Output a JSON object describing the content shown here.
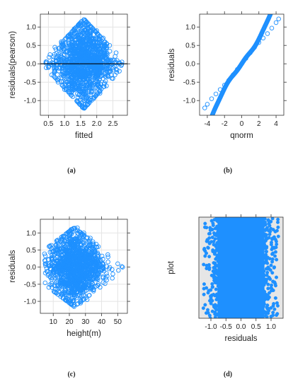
{
  "point_color": "#1E90FF",
  "chart_data": [
    {
      "type": "scatter",
      "caption": "(a)",
      "xlabel": "fitted",
      "ylabel": "residuals(pearson)",
      "xlim": [
        0.25,
        2.95
      ],
      "ylim": [
        -1.4,
        1.35
      ],
      "xticks": [
        0.5,
        1.0,
        1.5,
        2.0,
        2.5
      ],
      "xtick_labels": [
        "0.5",
        "1.0",
        "1.5",
        "2.0",
        "2.5"
      ],
      "yticks": [
        -1.0,
        -0.5,
        0.0,
        0.5,
        1.0
      ],
      "ytick_labels": [
        "-1.0",
        "-0.5",
        "0.0",
        "0.5",
        "1.0"
      ],
      "grid": true,
      "reference_line_y": 0,
      "marker": "open-circle",
      "series": [
        {
          "x": [
            0.45,
            0.5,
            0.55,
            0.6,
            0.7,
            0.8,
            0.9,
            1.0,
            1.1,
            1.2,
            1.3,
            1.4,
            1.5,
            1.55,
            1.6,
            1.7,
            1.8,
            1.9,
            2.0,
            2.1,
            2.2,
            2.3,
            2.4,
            2.5,
            2.6,
            2.7,
            2.78
          ],
          "y": [
            0.05,
            -0.1,
            0.25,
            -0.3,
            0.45,
            -0.5,
            0.6,
            -0.7,
            0.75,
            -0.85,
            0.95,
            -1.0,
            1.1,
            -1.18,
            1.2,
            -1.1,
            1.0,
            -0.95,
            0.9,
            -0.8,
            0.7,
            -0.6,
            0.5,
            -0.4,
            0.3,
            -0.2,
            0.05
          ]
        }
      ]
    },
    {
      "type": "scatter",
      "caption": "(b)",
      "xlabel": "qnorm",
      "ylabel": "residuals",
      "xlim": [
        -4.9,
        4.9
      ],
      "ylim": [
        -1.4,
        1.35
      ],
      "xticks": [
        -4,
        -2,
        0,
        2,
        4
      ],
      "xtick_labels": [
        "-4",
        "-2",
        "0",
        "2",
        "4"
      ],
      "yticks": [
        -1.0,
        -0.5,
        0.0,
        0.5,
        1.0
      ],
      "ytick_labels": [
        "-1.0",
        "-0.5",
        "0.0",
        "0.5",
        "1.0"
      ],
      "grid": false,
      "marker": "open-circle",
      "series": [
        {
          "x": [
            -4.3,
            -4.0,
            -3.5,
            -3.0,
            -2.5,
            -2.0,
            -1.5,
            -1.0,
            -0.5,
            0.0,
            0.5,
            1.0,
            1.5,
            2.0,
            2.5,
            3.0,
            3.5,
            4.0,
            4.3
          ],
          "y": [
            -1.2,
            -1.1,
            -0.95,
            -0.82,
            -0.7,
            -0.58,
            -0.45,
            -0.3,
            -0.15,
            0.0,
            0.15,
            0.3,
            0.45,
            0.58,
            0.7,
            0.82,
            0.97,
            1.12,
            1.22
          ]
        }
      ]
    },
    {
      "type": "scatter",
      "caption": "(c)",
      "xlabel": "height(m)",
      "ylabel": "residuals",
      "xlim": [
        2,
        56
      ],
      "ylim": [
        -1.35,
        1.4
      ],
      "xticks": [
        10,
        20,
        30,
        40,
        50
      ],
      "xtick_labels": [
        "10",
        "20",
        "30",
        "40",
        "50"
      ],
      "yticks": [
        -1.0,
        -0.5,
        0.0,
        0.5,
        1.0
      ],
      "ytick_labels": [
        "-1.0",
        "-0.5",
        "0.0",
        "0.5",
        "1.0"
      ],
      "grid": true,
      "marker": "open-circle",
      "series": [
        {
          "x": [
            5,
            7,
            9,
            11,
            13,
            15,
            17,
            19,
            21,
            23,
            25,
            27,
            29,
            31,
            33,
            35,
            38,
            41,
            44,
            47,
            50,
            53
          ],
          "y": [
            0.1,
            -0.2,
            0.45,
            -0.55,
            0.7,
            -0.8,
            0.9,
            -1.0,
            1.1,
            -1.1,
            1.15,
            -1.05,
            1.0,
            -0.95,
            0.85,
            -0.7,
            0.6,
            -0.45,
            0.3,
            -0.2,
            0.1,
            0.0
          ]
        }
      ]
    },
    {
      "type": "scatter",
      "caption": "(d)",
      "xlabel": "residuals",
      "ylabel": "plot",
      "xlim": [
        -1.4,
        1.4
      ],
      "xticks": [
        -1.0,
        -0.5,
        0.0,
        0.5,
        1.0
      ],
      "xtick_labels": [
        "-1.0",
        "-0.5",
        "0.0",
        "0.5",
        "1.0"
      ],
      "yticks": [],
      "ytick_labels": [],
      "background": "#e6e6e6",
      "marker": "filled-circle",
      "series": [
        {
          "x": [
            -1.25,
            -1.2,
            -1.15,
            -1.1,
            -1.05,
            -1.0,
            -0.95,
            -0.9,
            -0.8,
            -0.6,
            -0.4,
            -0.2,
            0.0,
            0.2,
            0.4,
            0.6,
            0.8,
            0.9,
            0.95,
            1.0,
            1.05,
            1.1,
            1.15
          ],
          "y": [
            0.1,
            0.9,
            0.3,
            0.7,
            0.5,
            0.2,
            0.8,
            0.4,
            0.6,
            0.15,
            0.85,
            0.35,
            0.65,
            0.25,
            0.75,
            0.45,
            0.55,
            0.05,
            0.95,
            0.3,
            0.7,
            0.5,
            0.2
          ]
        }
      ]
    }
  ]
}
